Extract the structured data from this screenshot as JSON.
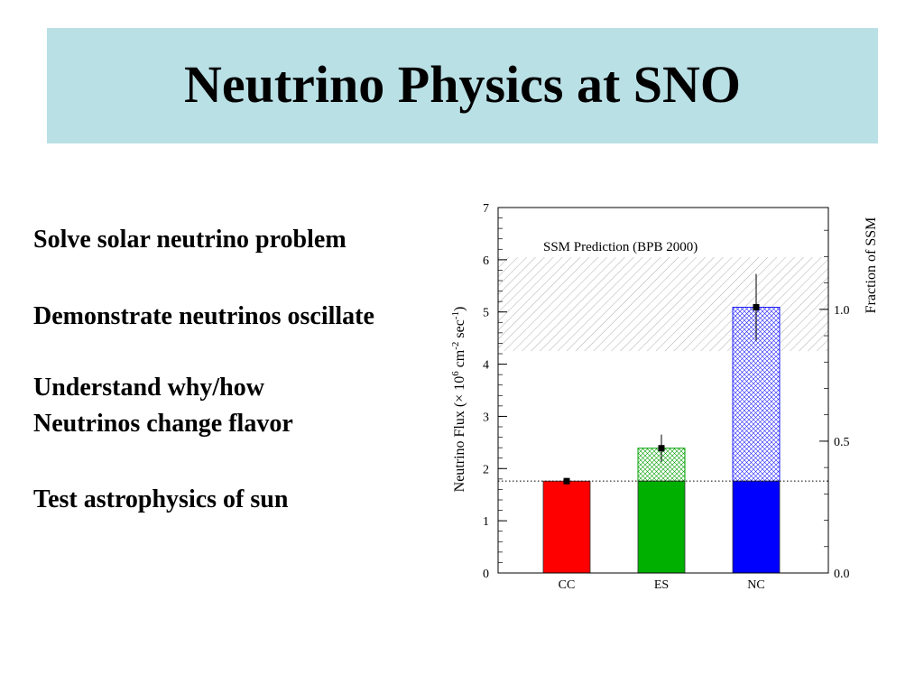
{
  "slide": {
    "title": "Neutrino Physics at SNO",
    "bullets": [
      "Solve solar neutrino problem",
      "Demonstrate neutrinos oscillate",
      "Understand why/how",
      "Neutrinos change flavor",
      "Test astrophysics of sun"
    ]
  },
  "colors": {
    "title_bg": "#b9e0e5",
    "cc": "#ff0000",
    "es": "#00b000",
    "nc": "#0000ff"
  },
  "chart_data": {
    "type": "bar",
    "title": "",
    "ylabel_main": "Neutrino Flux (× 10",
    "ylabel_exp1": "6",
    "ylabel_mid": " cm",
    "ylabel_exp2": "-2",
    "ylabel_tail": " sec",
    "ylabel_exp3": "-1",
    "ylabel_close": ")",
    "y2label": "Fraction of SSM",
    "ylim": [
      0,
      7
    ],
    "yticks": [
      "0",
      "1",
      "2",
      "3",
      "4",
      "5",
      "6",
      "7"
    ],
    "y2ticks": [
      {
        "value": 0.0,
        "label": "0.0"
      },
      {
        "value": 0.5,
        "label": "0.5"
      },
      {
        "value": 1.0,
        "label": "1.0"
      }
    ],
    "y2_ssm_flux": 5.05,
    "categories": [
      "CC",
      "ES",
      "NC"
    ],
    "base_value": 1.76,
    "total_values": [
      1.76,
      2.39,
      5.09
    ],
    "measured": [
      {
        "value": 1.76,
        "err": 0.06
      },
      {
        "value": 2.39,
        "err": 0.26
      },
      {
        "value": 5.09,
        "err": 0.64
      }
    ],
    "ssm_band": {
      "label": "SSM Prediction (BPB 2000)",
      "low": 4.25,
      "high": 6.05
    },
    "dotted_line": 1.76
  }
}
